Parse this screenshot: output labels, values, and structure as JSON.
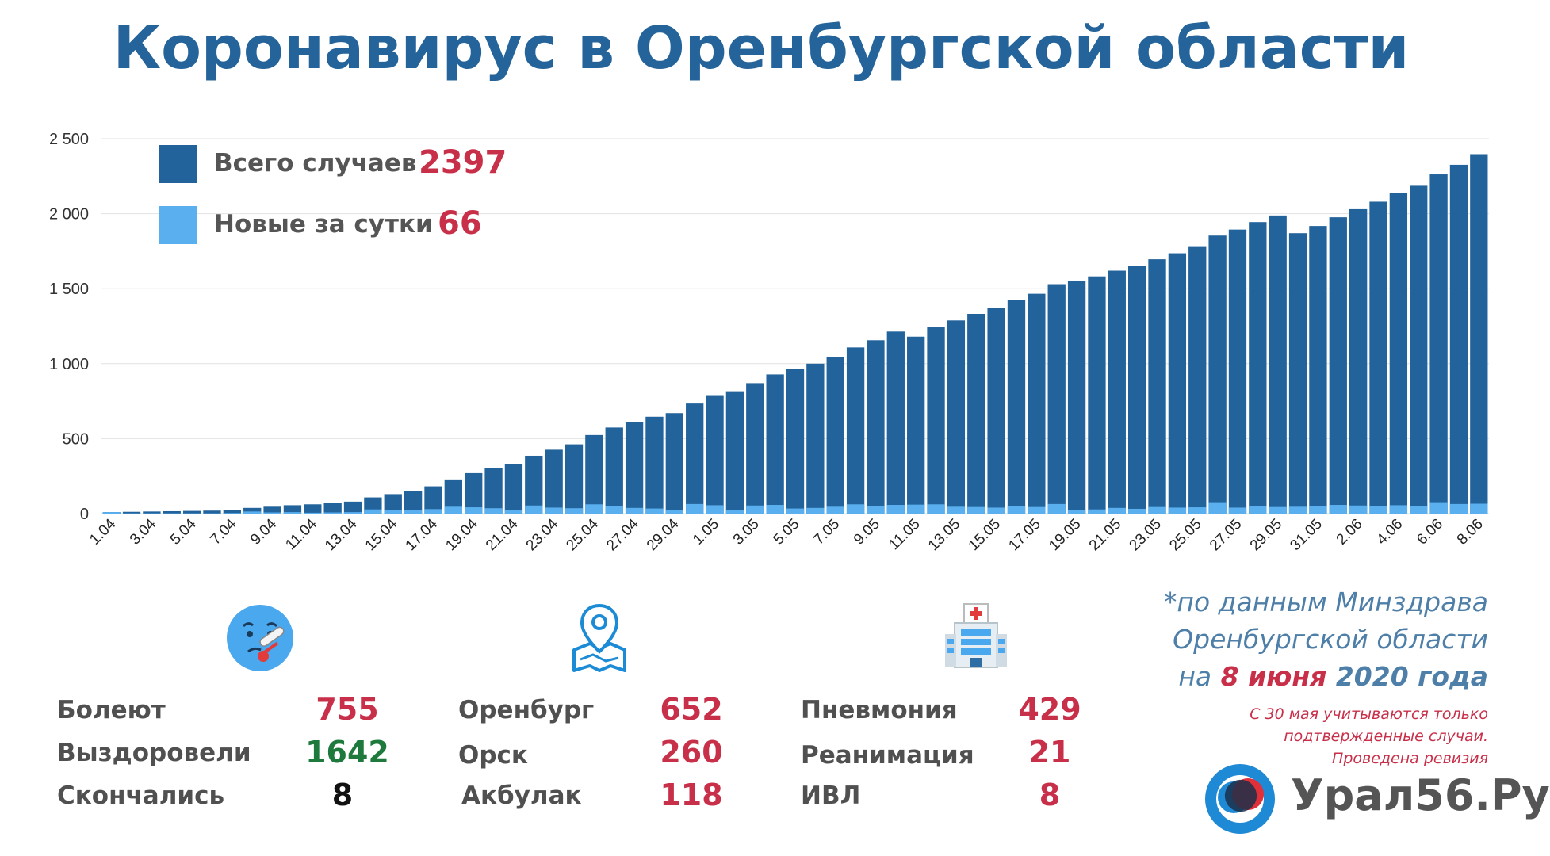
{
  "title": "Коронавирус в Оренбургской области",
  "legend": {
    "total_label": "Всего случаев",
    "total_value": "2397",
    "new_label": "Новые за сутки",
    "new_value": "66"
  },
  "colors": {
    "title": "#25649a",
    "total_bar": "#23639b",
    "new_bar": "#5aafef",
    "accent_red": "#c8304a",
    "green": "#1e7a3c",
    "grid": "#e2e2e2"
  },
  "chart_data": {
    "type": "bar",
    "stacked_overlay": true,
    "ylim": [
      0,
      2500
    ],
    "yticks": [
      "0",
      "500",
      "1 000",
      "1 500",
      "2 000",
      "2 500"
    ],
    "ytick_values": [
      0,
      500,
      1000,
      1500,
      2000,
      2500
    ],
    "xtick_labels": [
      "1.04",
      "3.04",
      "5.04",
      "7.04",
      "9.04",
      "11.04",
      "13.04",
      "15.04",
      "17.04",
      "19.04",
      "21.04",
      "23.04",
      "25.04",
      "27.04",
      "29.04",
      "1.05",
      "3.05",
      "5.05",
      "7.05",
      "9.05",
      "11.05",
      "13.05",
      "15.05",
      "17.05",
      "19.05",
      "21.05",
      "23.05",
      "25.05",
      "27.05",
      "29.05",
      "31.05",
      "2.06",
      "4.06",
      "6.06",
      "8.06"
    ],
    "grid": true,
    "series": [
      {
        "name": "Всего случаев",
        "values": [
          10,
          12,
          14,
          16,
          18,
          20,
          24,
          38,
          46,
          56,
          62,
          70,
          80,
          108,
          130,
          152,
          182,
          228,
          270,
          306,
          332,
          386,
          426,
          462,
          524,
          574,
          612,
          646,
          670,
          734,
          790,
          816,
          870,
          928,
          962,
          1000,
          1046,
          1108,
          1156,
          1214,
          1180,
          1242,
          1288,
          1332,
          1372,
          1422,
          1466,
          1530,
          1554,
          1582,
          1620,
          1652,
          1696,
          1736,
          1778,
          1854,
          1894,
          1944,
          1988,
          1870,
          1918,
          1976,
          2030,
          2080,
          2136,
          2186,
          2262,
          2326,
          2397
        ]
      },
      {
        "name": "Новые за сутки",
        "values": [
          10,
          2,
          2,
          2,
          2,
          2,
          4,
          14,
          8,
          10,
          6,
          8,
          10,
          28,
          22,
          22,
          30,
          46,
          42,
          36,
          26,
          54,
          40,
          36,
          62,
          50,
          38,
          34,
          24,
          64,
          56,
          26,
          54,
          58,
          34,
          38,
          46,
          62,
          48,
          58,
          60,
          62,
          46,
          44,
          40,
          50,
          44,
          64,
          24,
          28,
          38,
          32,
          44,
          40,
          42,
          76,
          40,
          50,
          44,
          46,
          48,
          58,
          54,
          50,
          56,
          50,
          76,
          64,
          66
        ]
      }
    ]
  },
  "stats": {
    "col1": [
      {
        "label": "Болеют",
        "value": "755"
      },
      {
        "label": "Выздоровели",
        "value": "1642"
      },
      {
        "label": "Скончались",
        "value": "8"
      }
    ],
    "col2": [
      {
        "label": "Оренбург",
        "value": "652"
      },
      {
        "label": "Орск",
        "value": "260"
      },
      {
        "label": "Акбулак",
        "value": "118"
      }
    ],
    "col3": [
      {
        "label": "Пневмония",
        "value": "429"
      },
      {
        "label": "Реанимация",
        "value": "21"
      },
      {
        "label": "ИВЛ",
        "value": "8"
      }
    ]
  },
  "icons": {
    "col1": "sick-face-thermometer-icon",
    "col2": "map-pin-icon",
    "col3": "hospital-icon"
  },
  "source": {
    "line1": "*по данным Минздрава",
    "line2": "Оренбургской области",
    "line3_prefix": "на",
    "line3_date": "8 июня",
    "line3_suffix": "2020 года"
  },
  "note": {
    "line1": "С 30 мая учитываются только",
    "line2": "подтвержденные случаи.",
    "line3": "Проведена ревизия"
  },
  "brand": "Урал56.Ру"
}
